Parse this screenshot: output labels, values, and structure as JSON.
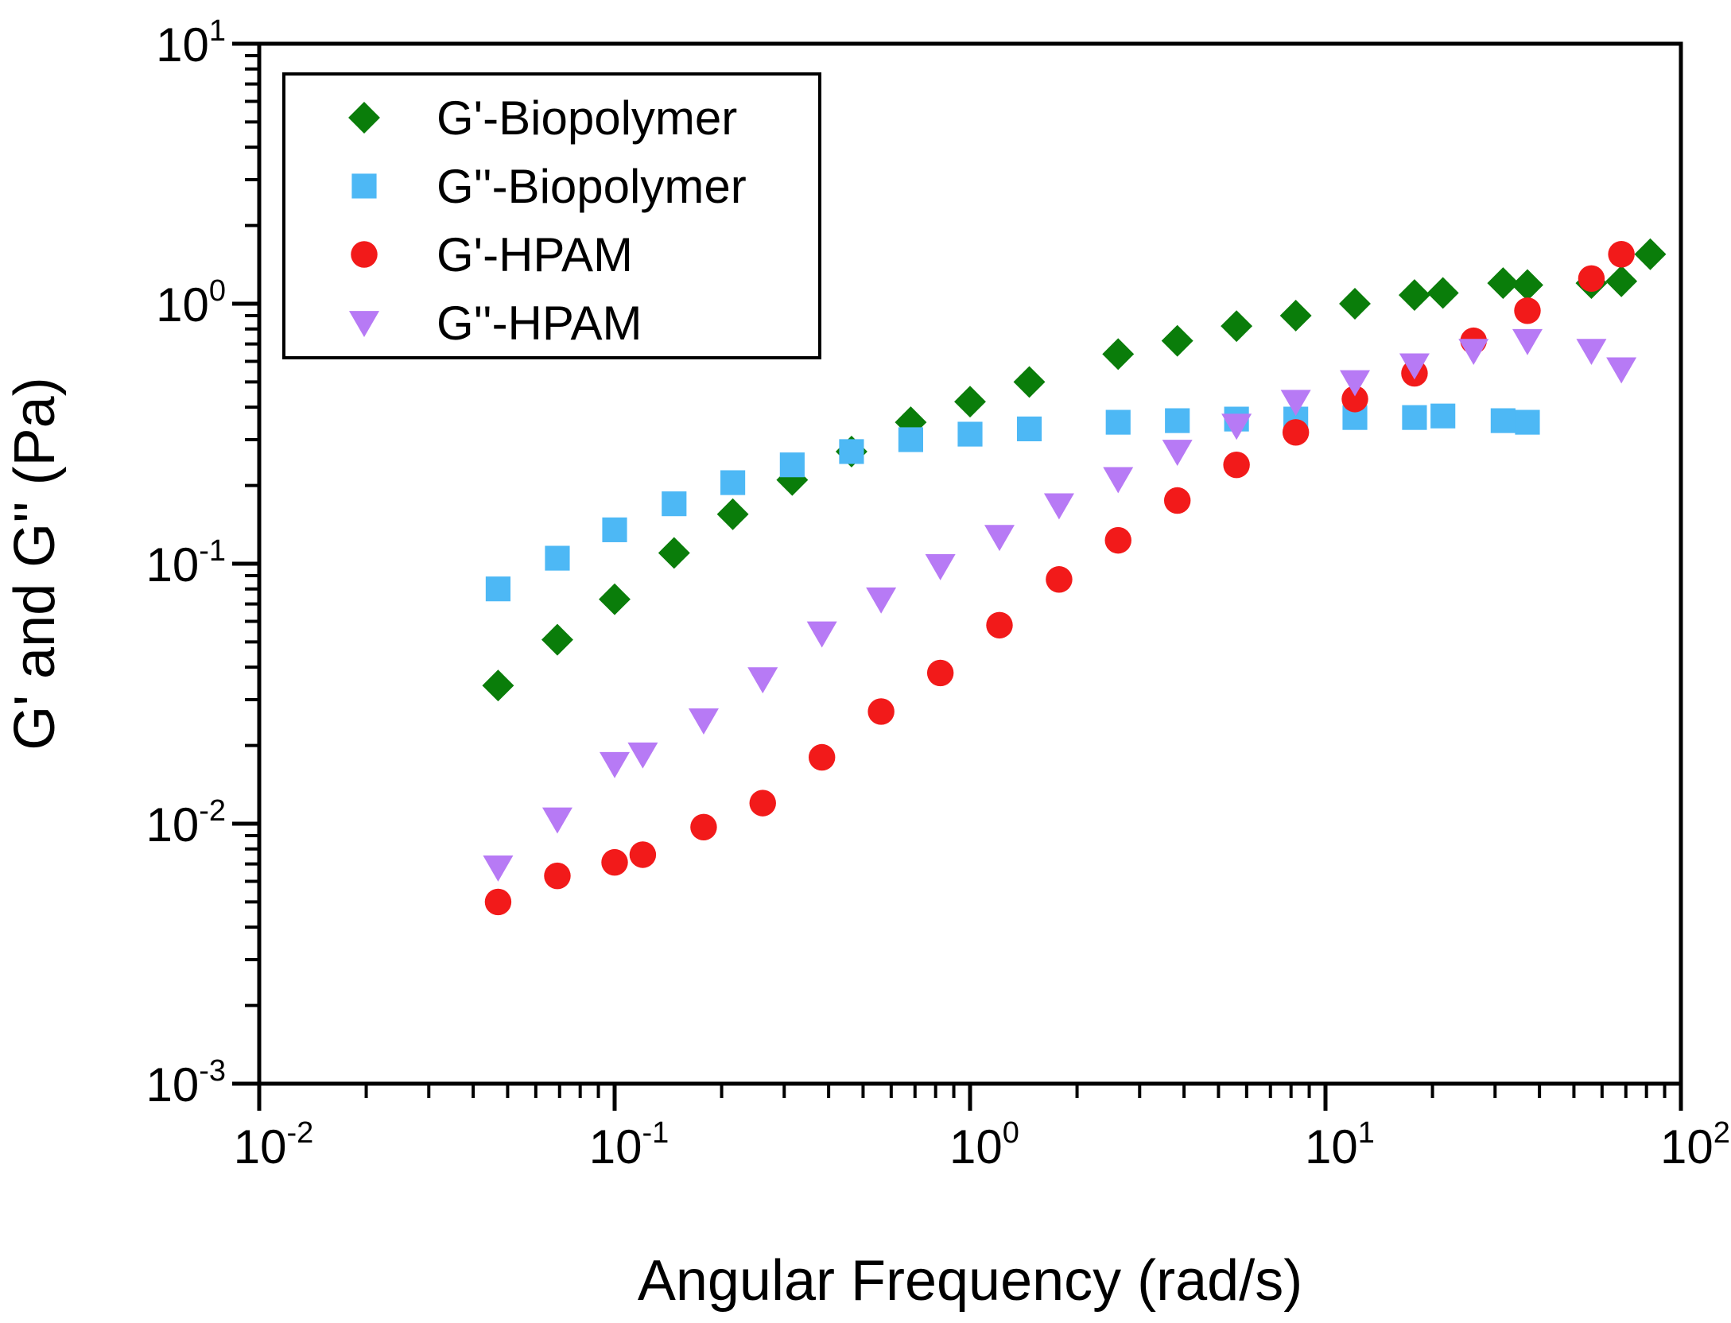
{
  "chart_data": {
    "type": "scatter",
    "xscale": "log",
    "yscale": "log",
    "xlabel": "Angular Frequency (rad/s)",
    "ylabel": "G' and G'' (Pa)",
    "xlim": [
      0.01,
      100
    ],
    "ylim": [
      0.001,
      10
    ],
    "grid": false,
    "legend_position": "top-left",
    "x_ticks": [
      {
        "base": "10",
        "exp": "-2",
        "value": 0.01
      },
      {
        "base": "10",
        "exp": "-1",
        "value": 0.1
      },
      {
        "base": "10",
        "exp": "0",
        "value": 1
      },
      {
        "base": "10",
        "exp": "1",
        "value": 10
      },
      {
        "base": "10",
        "exp": "2",
        "value": 100
      }
    ],
    "y_ticks": [
      {
        "base": "10",
        "exp": "-3",
        "value": 0.001
      },
      {
        "base": "10",
        "exp": "-2",
        "value": 0.01
      },
      {
        "base": "10",
        "exp": "-1",
        "value": 0.1
      },
      {
        "base": "10",
        "exp": "0",
        "value": 1
      },
      {
        "base": "10",
        "exp": "1",
        "value": 10
      }
    ],
    "series": [
      {
        "name": "G'-Biopolymer",
        "marker": "diamond",
        "color": "#0a7d0a",
        "x": [
          0.047,
          0.069,
          0.1,
          0.147,
          0.215,
          0.316,
          0.464,
          0.681,
          1.0,
          1.468,
          2.61,
          3.83,
          5.62,
          8.25,
          12.1,
          17.8,
          21.4,
          31.6,
          37.0,
          56.0,
          68.0,
          82.0
        ],
        "y": [
          0.034,
          0.051,
          0.073,
          0.11,
          0.155,
          0.21,
          0.27,
          0.35,
          0.42,
          0.5,
          0.64,
          0.72,
          0.82,
          0.9,
          1.0,
          1.08,
          1.1,
          1.2,
          1.18,
          1.2,
          1.22,
          1.55
        ]
      },
      {
        "name": "G''-Biopolymer",
        "marker": "square",
        "color": "#4db8f5",
        "x": [
          0.047,
          0.069,
          0.1,
          0.147,
          0.215,
          0.316,
          0.464,
          0.681,
          1.0,
          1.468,
          2.61,
          3.83,
          5.62,
          8.25,
          12.1,
          17.8,
          21.4,
          31.6,
          37.0
        ],
        "y": [
          0.08,
          0.105,
          0.135,
          0.17,
          0.205,
          0.24,
          0.27,
          0.3,
          0.315,
          0.33,
          0.35,
          0.355,
          0.36,
          0.36,
          0.365,
          0.365,
          0.37,
          0.355,
          0.35
        ]
      },
      {
        "name": "G'-HPAM",
        "marker": "circle",
        "color": "#f21a1a",
        "x": [
          0.047,
          0.069,
          0.1,
          0.12,
          0.178,
          0.261,
          0.383,
          0.562,
          0.825,
          1.21,
          1.78,
          2.61,
          3.83,
          5.62,
          8.25,
          12.1,
          17.8,
          26.1,
          37.0,
          56.0,
          68.0
        ],
        "y": [
          0.005,
          0.0063,
          0.0071,
          0.0076,
          0.0097,
          0.012,
          0.018,
          0.027,
          0.038,
          0.058,
          0.087,
          0.123,
          0.175,
          0.24,
          0.32,
          0.43,
          0.54,
          0.72,
          0.94,
          1.25,
          1.55
        ]
      },
      {
        "name": "G''-HPAM",
        "marker": "triangle-down",
        "color": "#b77af5",
        "x": [
          0.047,
          0.069,
          0.1,
          0.12,
          0.178,
          0.261,
          0.383,
          0.562,
          0.825,
          1.21,
          1.78,
          2.61,
          3.83,
          5.62,
          8.25,
          12.1,
          17.8,
          26.1,
          37.0,
          56.0,
          68.0
        ],
        "y": [
          0.0068,
          0.0104,
          0.017,
          0.0185,
          0.025,
          0.036,
          0.054,
          0.073,
          0.098,
          0.127,
          0.168,
          0.212,
          0.27,
          0.34,
          0.42,
          0.5,
          0.58,
          0.66,
          0.72,
          0.66,
          0.56
        ]
      }
    ]
  }
}
